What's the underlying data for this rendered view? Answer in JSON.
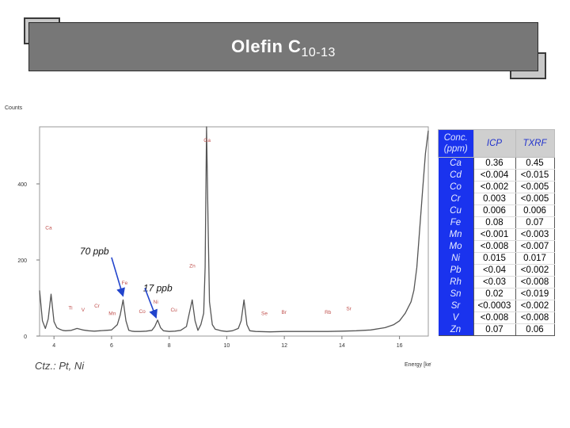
{
  "title": {
    "main": "Olefin C",
    "sub": "10-13"
  },
  "note": "Ctz.: Pt, Ni",
  "chart_data": {
    "type": "line",
    "ylabel": "Counts",
    "xlabel": "Energy [keV]",
    "xlim": [
      3.5,
      17
    ],
    "ylim": [
      0,
      550
    ],
    "x_ticks": [
      4,
      6,
      8,
      10,
      12,
      14,
      16
    ],
    "y_ticks": [
      0,
      200,
      400
    ],
    "grid": false,
    "series": [
      {
        "x": [
          3.5,
          3.6,
          3.7,
          3.8,
          3.9,
          4.0,
          4.1,
          4.2,
          4.3,
          4.4,
          4.6,
          4.8,
          5.0,
          5.2,
          5.4,
          5.6,
          5.8,
          6.0,
          6.2,
          6.3,
          6.4,
          6.5,
          6.6,
          6.7,
          6.8,
          7.0,
          7.2,
          7.4,
          7.5,
          7.6,
          7.7,
          7.8,
          8.0,
          8.2,
          8.4,
          8.6,
          8.7,
          8.8,
          8.9,
          9.0,
          9.1,
          9.2,
          9.25,
          9.3,
          9.35,
          9.4,
          9.5,
          9.6,
          9.7,
          9.8,
          10.0,
          10.2,
          10.4,
          10.5,
          10.6,
          10.7,
          10.8,
          11.0,
          11.5,
          12.0,
          12.5,
          13.0,
          13.5,
          14.0,
          14.5,
          15.0,
          15.5,
          15.8,
          16.0,
          16.2,
          16.4,
          16.5,
          16.6,
          16.7,
          16.8,
          16.9,
          17.0
        ],
        "y": [
          120,
          40,
          20,
          45,
          110,
          38,
          22,
          18,
          15,
          14,
          15,
          20,
          16,
          14,
          13,
          14,
          15,
          16,
          30,
          55,
          95,
          40,
          15,
          13,
          12,
          12,
          13,
          15,
          25,
          42,
          22,
          14,
          12,
          13,
          15,
          25,
          60,
          95,
          40,
          15,
          30,
          60,
          180,
          550,
          300,
          90,
          30,
          18,
          16,
          14,
          12,
          14,
          20,
          40,
          95,
          30,
          14,
          12,
          11,
          12,
          12,
          12,
          12,
          13,
          14,
          16,
          22,
          30,
          40,
          60,
          90,
          120,
          180,
          280,
          380,
          480,
          540
        ]
      }
    ],
    "peak_labels": [
      {
        "text": "Ca",
        "x": 3.7,
        "y": 280
      },
      {
        "text": "Ti",
        "x": 4.5,
        "y": 70
      },
      {
        "text": "V",
        "x": 4.95,
        "y": 65
      },
      {
        "text": "Cr",
        "x": 5.4,
        "y": 75
      },
      {
        "text": "Mn",
        "x": 5.9,
        "y": 55
      },
      {
        "text": "Fe",
        "x": 6.35,
        "y": 135
      },
      {
        "text": "Co",
        "x": 6.95,
        "y": 60
      },
      {
        "text": "Ni",
        "x": 7.45,
        "y": 85
      },
      {
        "text": "Cu",
        "x": 8.05,
        "y": 65
      },
      {
        "text": "Zn",
        "x": 8.7,
        "y": 180
      },
      {
        "text": "Ga",
        "x": 9.2,
        "y": 510
      },
      {
        "text": "Se",
        "x": 11.2,
        "y": 55
      },
      {
        "text": "Br",
        "x": 11.9,
        "y": 58
      },
      {
        "text": "Rb",
        "x": 13.4,
        "y": 58
      },
      {
        "text": "Sr",
        "x": 14.15,
        "y": 68
      }
    ],
    "annotations": [
      {
        "text": "70 ppb",
        "tx": 4.9,
        "ty": 215,
        "ax": 6.4,
        "ay": 105
      },
      {
        "text": "17 ppb",
        "tx": 7.1,
        "ty": 118,
        "ax": 7.55,
        "ay": 48
      }
    ]
  },
  "table": {
    "headers": [
      "Conc. (ppm)",
      "ICP",
      "TXRF"
    ],
    "rows": [
      [
        "Ca",
        "0.36",
        "0.45"
      ],
      [
        "Cd",
        "<0.004",
        "<0.015"
      ],
      [
        "Co",
        "<0.002",
        "<0.005"
      ],
      [
        "Cr",
        "0.003",
        "<0.005"
      ],
      [
        "Cu",
        "0.006",
        "0.006"
      ],
      [
        "Fe",
        "0.08",
        "0.07"
      ],
      [
        "Mn",
        "<0.001",
        "<0.003"
      ],
      [
        "Mo",
        "<0.008",
        "<0.007"
      ],
      [
        "Ni",
        "0.015",
        "0.017"
      ],
      [
        "Pb",
        "<0.04",
        "<0.002"
      ],
      [
        "Rh",
        "<0.03",
        "<0.008"
      ],
      [
        "Sn",
        "0.02",
        "<0.019"
      ],
      [
        "Sr",
        "<0.0003",
        "<0.002"
      ],
      [
        "V",
        "<0.008",
        "<0.008"
      ],
      [
        "Zn",
        "0.07",
        "0.06"
      ]
    ]
  },
  "colors": {
    "title_bg": "#777777",
    "spectrum": "#555555",
    "peak_label": "#c0504d",
    "table_header": "#1a33ee",
    "table_header_text": "#2233cc",
    "arrow": "#2244cc"
  }
}
